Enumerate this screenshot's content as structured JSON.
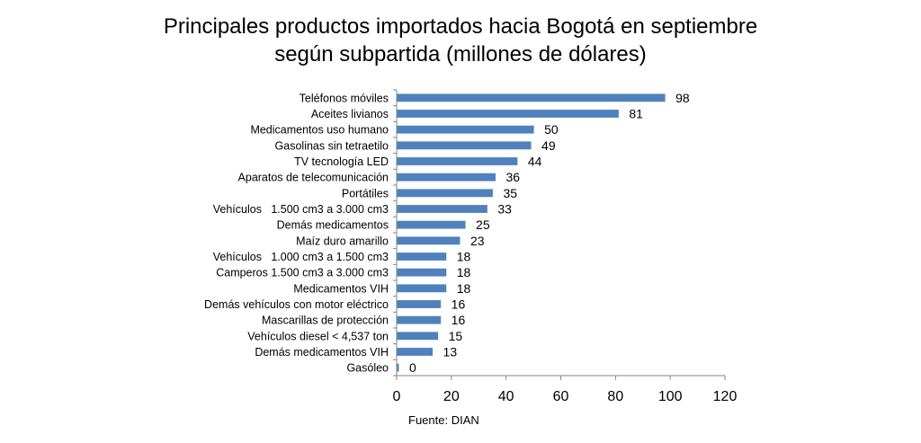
{
  "chart_data": {
    "type": "bar",
    "orientation": "horizontal",
    "title": "Principales productos importados hacia Bogotá en septiembre según subpartida (millones de dólares)",
    "title_lines": [
      "Principales productos importados hacia Bogotá en septiembre",
      "según subpartida (millones de dólares)"
    ],
    "categories": [
      "Teléfonos móviles",
      "Aceites livianos",
      "Medicamentos uso humano",
      "Gasolinas sin tetraetilo",
      "TV tecnología LED",
      "Aparatos de telecomunicación",
      "Portátiles",
      "Vehículos   1.500 cm3 a 3.000 cm3",
      "Demás medicamentos",
      "Maíz duro amarillo",
      "Vehículos   1.000 cm3 a 1.500 cm3",
      "Camperos 1.500 cm3 a 3.000 cm3",
      "Medicamentos VIH",
      "Demás vehículos con motor eléctrico",
      "Mascarillas de protección",
      "Vehículos diesel < 4,537 ton",
      "Demás medicamentos VIH",
      "Gasóleo"
    ],
    "values": [
      98,
      81,
      50,
      49,
      44,
      36,
      35,
      33,
      25,
      23,
      18,
      18,
      18,
      16,
      16,
      15,
      13,
      0
    ],
    "value_labels": [
      "98",
      "81",
      "50",
      "49",
      "44",
      "36",
      "35",
      "33",
      "25",
      "23",
      "18",
      "18",
      "18",
      "16",
      "16",
      "15",
      "13",
      "0"
    ],
    "xlabel": "",
    "ylabel": "",
    "xlim": [
      0,
      120
    ],
    "x_ticks": [
      0,
      20,
      40,
      60,
      80,
      100,
      120
    ],
    "x_tick_labels": [
      "0",
      "20",
      "40",
      "60",
      "80",
      "100",
      "120"
    ],
    "grid": false,
    "legend": "none",
    "bar_color": "#4f81bd",
    "axis_color": "#868686",
    "source": "Fuente: DIAN"
  }
}
